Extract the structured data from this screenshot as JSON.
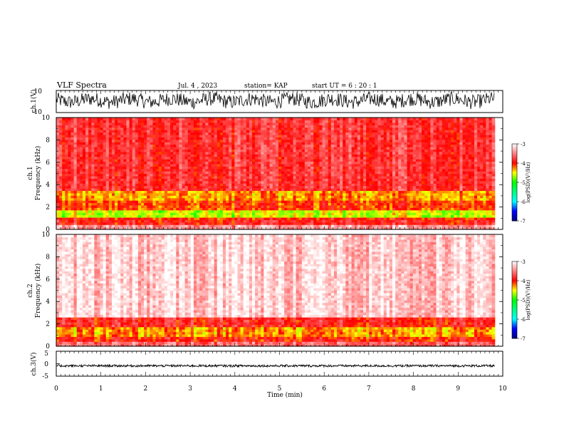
{
  "header": {
    "title": "VLF Spectra",
    "date": "Jul. 4 , 2023",
    "station": "station= KAP",
    "start": "start UT = 6 : 20 : 1"
  },
  "chart_data": [
    {
      "type": "line",
      "title": "",
      "ylabel": "ch.1(V)",
      "xlim": [
        0,
        10
      ],
      "ylim": [
        -10,
        10
      ],
      "yticks": [
        "10",
        "-10"
      ],
      "description_level": "noise signal oscillating mostly between -6 and 8 V",
      "color": "#000000"
    },
    {
      "type": "heatmap",
      "ylabel_line1": "ch.1",
      "ylabel_line2": "Frequency (kHz)",
      "xlim": [
        0,
        10
      ],
      "ylim": [
        0,
        10
      ],
      "yticks": [
        "0",
        "2",
        "4",
        "6",
        "8",
        "10"
      ],
      "colorbar": {
        "label": "log(PSD)(V²/Hz)",
        "range": [
          -7,
          -3
        ],
        "ticks": [
          "-3",
          "-4",
          "-5",
          "-6",
          "-7"
        ],
        "colors": [
          "#000080",
          "#0000ff",
          "#00ffff",
          "#00ff00",
          "#ffff00",
          "#ff0000",
          "#ffffff"
        ]
      },
      "bands": [
        {
          "from": 0.0,
          "to": 0.4,
          "level": -3.4
        },
        {
          "from": 0.4,
          "to": 0.8,
          "level": -3.9
        },
        {
          "from": 0.8,
          "to": 1.1,
          "level": -4.0
        },
        {
          "from": 1.1,
          "to": 1.8,
          "level": -4.6
        },
        {
          "from": 1.8,
          "to": 2.6,
          "level": -4.1
        },
        {
          "from": 2.6,
          "to": 3.4,
          "level": -4.3
        },
        {
          "from": 3.4,
          "to": 10.0,
          "level": -3.8
        }
      ]
    },
    {
      "type": "heatmap",
      "ylabel_line1": "ch.2",
      "ylabel_line2": "Frequency (kHz)",
      "xlim": [
        0,
        10
      ],
      "ylim": [
        0,
        10
      ],
      "yticks": [
        "0",
        "2",
        "4",
        "6",
        "8",
        "10"
      ],
      "colorbar": {
        "label": "log(PSD)(V²/Hz)",
        "range": [
          -7,
          -3
        ],
        "ticks": [
          "-3",
          "-4",
          "-5",
          "-6",
          "-7"
        ]
      },
      "bands": [
        {
          "from": 0.0,
          "to": 0.5,
          "level": -3.6
        },
        {
          "from": 0.5,
          "to": 0.9,
          "level": -4.0
        },
        {
          "from": 0.9,
          "to": 1.8,
          "level": -4.3
        },
        {
          "from": 1.8,
          "to": 2.7,
          "level": -3.9
        },
        {
          "from": 2.7,
          "to": 10.0,
          "level": -3.2
        }
      ]
    },
    {
      "type": "line",
      "ylabel": "ch.3(V)",
      "xlim": [
        0,
        10
      ],
      "ylim": [
        -5,
        5
      ],
      "yticks": [
        "5",
        "0",
        "-5"
      ],
      "level_range": [
        -1.3,
        -0.4
      ],
      "color": "#000000"
    }
  ],
  "xaxis": {
    "label": "Time (min)",
    "ticks": [
      "0",
      "1",
      "2",
      "3",
      "4",
      "5",
      "6",
      "7",
      "8",
      "9",
      "10"
    ],
    "data_end": 9.82
  }
}
